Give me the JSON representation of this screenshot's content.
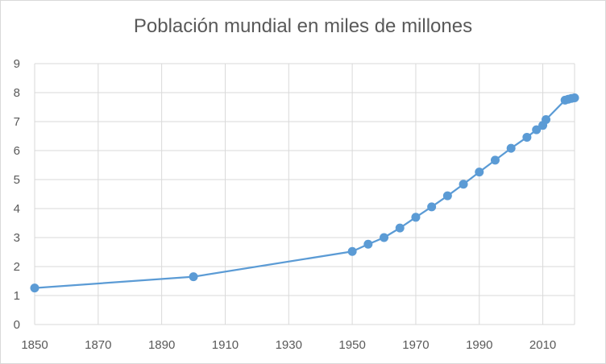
{
  "chart_data": {
    "type": "line",
    "title": "Población mundial en miles de millones",
    "xlabel": "",
    "ylabel": "",
    "xlim": [
      1850,
      2020
    ],
    "ylim": [
      0,
      9
    ],
    "xticks": [
      1850,
      1870,
      1890,
      1910,
      1930,
      1950,
      1970,
      1990,
      2010
    ],
    "yticks": [
      0,
      1,
      2,
      3,
      4,
      5,
      6,
      7,
      8,
      9
    ],
    "grid": true,
    "legend": "none",
    "colors": {
      "series": "#5b9bd5",
      "grid": "#d9d9d9",
      "text": "#595959"
    },
    "series": [
      {
        "x": [
          1850,
          1900,
          1950,
          1955,
          1960,
          1965,
          1970,
          1975,
          1980,
          1985,
          1990,
          1995,
          2000,
          2005,
          2008,
          2010,
          2011,
          2017,
          2018,
          2019,
          2020
        ],
        "y": [
          1.26,
          1.65,
          2.52,
          2.77,
          3.0,
          3.33,
          3.7,
          4.06,
          4.44,
          4.84,
          5.26,
          5.67,
          6.08,
          6.46,
          6.72,
          6.87,
          7.07,
          7.74,
          7.77,
          7.8,
          7.82
        ]
      }
    ]
  }
}
